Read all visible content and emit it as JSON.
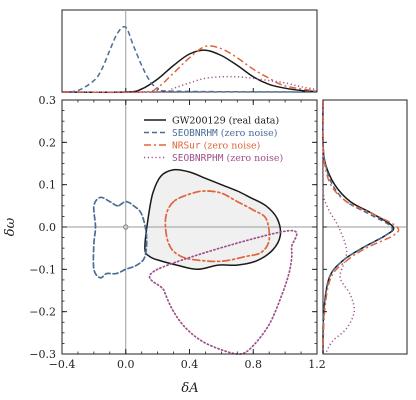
{
  "chart_data": {
    "type": "contour",
    "xlabel": "δA",
    "ylabel": "δω",
    "xlim": [
      -0.4,
      1.2
    ],
    "ylim": [
      -0.3,
      0.3
    ],
    "xticks": [
      "−0.4",
      "0.0",
      "0.4",
      "0.8",
      "1.2"
    ],
    "yticks": [
      "0.3",
      "0.2",
      "0.1",
      "0.0",
      "−0.1",
      "−0.2",
      "−0.3"
    ],
    "reference_point": {
      "x": 0.0,
      "y": 0.0
    },
    "legend_placement": "top-right",
    "series": [
      {
        "name": "GW200129 (real data)",
        "name_main": "GW200129",
        "name_suffix": " (real data)",
        "color": "#1a1a1a",
        "linestyle": "solid",
        "fill": "#f0f0f0",
        "contour": [
          [
            0.12,
            -0.05
          ],
          [
            0.14,
            0.02
          ],
          [
            0.17,
            0.08
          ],
          [
            0.22,
            0.12
          ],
          [
            0.3,
            0.135
          ],
          [
            0.4,
            0.13
          ],
          [
            0.5,
            0.115
          ],
          [
            0.6,
            0.1
          ],
          [
            0.7,
            0.085
          ],
          [
            0.78,
            0.07
          ],
          [
            0.88,
            0.05
          ],
          [
            0.95,
            0.02
          ],
          [
            0.97,
            -0.02
          ],
          [
            0.92,
            -0.055
          ],
          [
            0.82,
            -0.08
          ],
          [
            0.7,
            -0.09
          ],
          [
            0.58,
            -0.09
          ],
          [
            0.45,
            -0.1
          ],
          [
            0.32,
            -0.09
          ],
          [
            0.22,
            -0.08
          ],
          [
            0.15,
            -0.07
          ]
        ],
        "x_marginal": [
          [
            -0.4,
            0
          ],
          [
            0.0,
            0.0
          ],
          [
            0.1,
            0.04
          ],
          [
            0.2,
            0.17
          ],
          [
            0.3,
            0.35
          ],
          [
            0.4,
            0.5
          ],
          [
            0.5,
            0.55
          ],
          [
            0.6,
            0.48
          ],
          [
            0.7,
            0.35
          ],
          [
            0.8,
            0.2
          ],
          [
            0.9,
            0.1
          ],
          [
            1.0,
            0.05
          ],
          [
            1.1,
            0.02
          ],
          [
            1.2,
            0.005
          ]
        ],
        "y_marginal": [
          [
            0.3,
            0
          ],
          [
            0.2,
            0.0
          ],
          [
            0.15,
            0.03
          ],
          [
            0.1,
            0.15
          ],
          [
            0.06,
            0.35
          ],
          [
            0.03,
            0.65
          ],
          [
            0.0,
            0.9
          ],
          [
            -0.02,
            0.8
          ],
          [
            -0.05,
            0.5
          ],
          [
            -0.08,
            0.25
          ],
          [
            -0.12,
            0.08
          ],
          [
            -0.2,
            0.01
          ],
          [
            -0.3,
            0
          ]
        ]
      },
      {
        "name": "SEOBNRHM (zero noise)",
        "name_main": "SEOBNRHM",
        "name_suffix": " (zero noise)",
        "color": "#4a6c96",
        "linestyle": "dashed",
        "contour": [
          [
            -0.05,
            0.05
          ],
          [
            -0.1,
            0.06
          ],
          [
            -0.16,
            0.07
          ],
          [
            -0.2,
            0.05
          ],
          [
            -0.19,
            0.0
          ],
          [
            -0.2,
            -0.04
          ],
          [
            -0.2,
            -0.1
          ],
          [
            -0.16,
            -0.12
          ],
          [
            -0.12,
            -0.11
          ],
          [
            -0.06,
            -0.11
          ],
          [
            0.0,
            -0.1
          ],
          [
            0.07,
            -0.09
          ],
          [
            0.12,
            -0.07
          ],
          [
            0.13,
            -0.02
          ],
          [
            0.1,
            0.03
          ],
          [
            0.05,
            0.05
          ],
          [
            0.0,
            0.06
          ]
        ],
        "x_marginal": [
          [
            -0.4,
            0
          ],
          [
            -0.3,
            0.02
          ],
          [
            -0.2,
            0.15
          ],
          [
            -0.15,
            0.3
          ],
          [
            -0.1,
            0.55
          ],
          [
            -0.05,
            0.78
          ],
          [
            0.0,
            0.85
          ],
          [
            0.05,
            0.6
          ],
          [
            0.1,
            0.35
          ],
          [
            0.15,
            0.15
          ],
          [
            0.2,
            0.05
          ],
          [
            0.3,
            0.01
          ],
          [
            1.2,
            0
          ]
        ],
        "y_marginal": [
          [
            0.3,
            0
          ],
          [
            0.2,
            0.0
          ],
          [
            0.15,
            0.03
          ],
          [
            0.1,
            0.12
          ],
          [
            0.06,
            0.3
          ],
          [
            0.03,
            0.6
          ],
          [
            0.0,
            0.88
          ],
          [
            -0.02,
            0.8
          ],
          [
            -0.05,
            0.5
          ],
          [
            -0.08,
            0.25
          ],
          [
            -0.12,
            0.08
          ],
          [
            -0.2,
            0.01
          ],
          [
            -0.3,
            0
          ]
        ]
      },
      {
        "name": "NRSur (zero noise)",
        "name_main": "NRSur",
        "name_suffix": " (zero noise)",
        "color": "#e0643a",
        "linestyle": "dashdot",
        "contour": [
          [
            0.3,
            0.06
          ],
          [
            0.25,
            0.02
          ],
          [
            0.27,
            -0.04
          ],
          [
            0.35,
            -0.07
          ],
          [
            0.5,
            -0.08
          ],
          [
            0.62,
            -0.08
          ],
          [
            0.75,
            -0.07
          ],
          [
            0.85,
            -0.06
          ],
          [
            0.9,
            -0.03
          ],
          [
            0.88,
            0.02
          ],
          [
            0.8,
            0.04
          ],
          [
            0.7,
            0.06
          ],
          [
            0.6,
            0.08
          ],
          [
            0.5,
            0.085
          ],
          [
            0.42,
            0.08
          ]
        ],
        "x_marginal": [
          [
            -0.4,
            0
          ],
          [
            0.1,
            0.0
          ],
          [
            0.2,
            0.06
          ],
          [
            0.3,
            0.25
          ],
          [
            0.4,
            0.45
          ],
          [
            0.5,
            0.6
          ],
          [
            0.6,
            0.57
          ],
          [
            0.7,
            0.45
          ],
          [
            0.8,
            0.3
          ],
          [
            0.9,
            0.18
          ],
          [
            1.0,
            0.08
          ],
          [
            1.2,
            0.01
          ]
        ],
        "y_marginal": [
          [
            0.3,
            0
          ],
          [
            0.2,
            0.0
          ],
          [
            0.15,
            0.02
          ],
          [
            0.1,
            0.1
          ],
          [
            0.06,
            0.3
          ],
          [
            0.03,
            0.65
          ],
          [
            0.0,
            0.95
          ],
          [
            -0.02,
            0.9
          ],
          [
            -0.05,
            0.55
          ],
          [
            -0.08,
            0.3
          ],
          [
            -0.12,
            0.1
          ],
          [
            -0.2,
            0.02
          ],
          [
            -0.3,
            0
          ]
        ]
      },
      {
        "name": "SEOBNRPHM (zero noise)",
        "name_main": "SEOBNRPHM",
        "name_suffix": " (zero noise)",
        "color": "#a0508c",
        "linestyle": "dotted",
        "contour": [
          [
            0.2,
            -0.1
          ],
          [
            0.24,
            -0.15
          ],
          [
            0.3,
            -0.2
          ],
          [
            0.38,
            -0.24
          ],
          [
            0.48,
            -0.27
          ],
          [
            0.6,
            -0.29
          ],
          [
            0.72,
            -0.3
          ],
          [
            0.8,
            -0.28
          ],
          [
            0.9,
            -0.23
          ],
          [
            0.98,
            -0.16
          ],
          [
            1.03,
            -0.1
          ],
          [
            1.04,
            -0.05
          ],
          [
            1.0,
            -0.01
          ]
        ],
        "x_marginal": [
          [
            -0.4,
            0
          ],
          [
            0.2,
            0.0
          ],
          [
            0.3,
            0.05
          ],
          [
            0.4,
            0.12
          ],
          [
            0.5,
            0.18
          ],
          [
            0.6,
            0.2
          ],
          [
            0.7,
            0.2
          ],
          [
            0.8,
            0.18
          ],
          [
            0.9,
            0.15
          ],
          [
            1.0,
            0.12
          ],
          [
            1.1,
            0.07
          ],
          [
            1.2,
            0.03
          ]
        ],
        "y_marginal": [
          [
            0.3,
            0
          ],
          [
            0.1,
            0.0
          ],
          [
            0.05,
            0.05
          ],
          [
            0.0,
            0.2
          ],
          [
            -0.05,
            0.3
          ],
          [
            -0.08,
            0.28
          ],
          [
            -0.12,
            0.22
          ],
          [
            -0.16,
            0.35
          ],
          [
            -0.2,
            0.4
          ],
          [
            -0.24,
            0.3
          ],
          [
            -0.27,
            0.12
          ],
          [
            -0.3,
            0.03
          ]
        ]
      }
    ]
  }
}
